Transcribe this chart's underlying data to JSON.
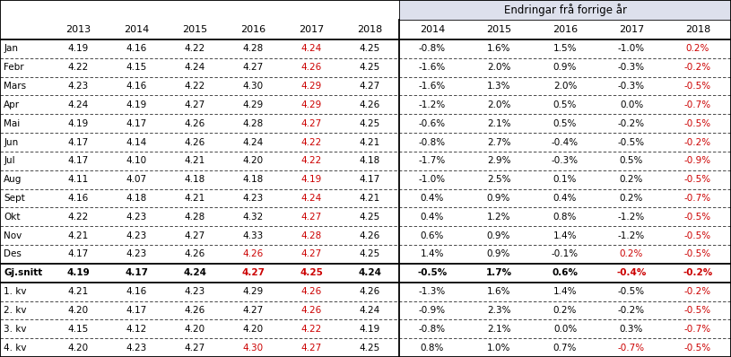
{
  "header_group": "Endringar frå forrige år",
  "left_years": [
    "2013",
    "2014",
    "2015",
    "2016",
    "2017",
    "2018"
  ],
  "right_years": [
    "2014",
    "2015",
    "2016",
    "2017",
    "2018"
  ],
  "row_labels": [
    "Jan",
    "Febr",
    "Mars",
    "Apr",
    "Mai",
    "Jun",
    "Jul",
    "Aug",
    "Sept",
    "Okt",
    "Nov",
    "Des",
    "Gj.snitt",
    "1. kv",
    "2. kv",
    "3. kv",
    "4. kv"
  ],
  "values_left": [
    [
      4.19,
      4.16,
      4.22,
      4.28,
      4.24,
      4.25
    ],
    [
      4.22,
      4.15,
      4.24,
      4.27,
      4.26,
      4.25
    ],
    [
      4.23,
      4.16,
      4.22,
      4.3,
      4.29,
      4.27
    ],
    [
      4.24,
      4.19,
      4.27,
      4.29,
      4.29,
      4.26
    ],
    [
      4.19,
      4.17,
      4.26,
      4.28,
      4.27,
      4.25
    ],
    [
      4.17,
      4.14,
      4.26,
      4.24,
      4.22,
      4.21
    ],
    [
      4.17,
      4.1,
      4.21,
      4.2,
      4.22,
      4.18
    ],
    [
      4.11,
      4.07,
      4.18,
      4.18,
      4.19,
      4.17
    ],
    [
      4.16,
      4.18,
      4.21,
      4.23,
      4.24,
      4.21
    ],
    [
      4.22,
      4.23,
      4.28,
      4.32,
      4.27,
      4.25
    ],
    [
      4.21,
      4.23,
      4.27,
      4.33,
      4.28,
      4.26
    ],
    [
      4.17,
      4.23,
      4.26,
      4.26,
      4.27,
      4.25
    ],
    [
      4.19,
      4.17,
      4.24,
      4.27,
      4.25,
      4.24
    ],
    [
      4.21,
      4.16,
      4.23,
      4.29,
      4.26,
      4.26
    ],
    [
      4.2,
      4.17,
      4.26,
      4.27,
      4.26,
      4.24
    ],
    [
      4.15,
      4.12,
      4.2,
      4.2,
      4.22,
      4.19
    ],
    [
      4.2,
      4.23,
      4.27,
      4.3,
      4.27,
      4.25
    ]
  ],
  "values_right": [
    [
      "-0.8%",
      "1.6%",
      "1.5%",
      "-1.0%",
      "0.2%"
    ],
    [
      "-1.6%",
      "2.0%",
      "0.9%",
      "-0.3%",
      "-0.2%"
    ],
    [
      "-1.6%",
      "1.3%",
      "2.0%",
      "-0.3%",
      "-0.5%"
    ],
    [
      "-1.2%",
      "2.0%",
      "0.5%",
      "0.0%",
      "-0.7%"
    ],
    [
      "-0.6%",
      "2.1%",
      "0.5%",
      "-0.2%",
      "-0.5%"
    ],
    [
      "-0.8%",
      "2.7%",
      "-0.4%",
      "-0.5%",
      "-0.2%"
    ],
    [
      "-1.7%",
      "2.9%",
      "-0.3%",
      "0.5%",
      "-0.9%"
    ],
    [
      "-1.0%",
      "2.5%",
      "0.1%",
      "0.2%",
      "-0.5%"
    ],
    [
      "0.4%",
      "0.9%",
      "0.4%",
      "0.2%",
      "-0.7%"
    ],
    [
      "0.4%",
      "1.2%",
      "0.8%",
      "-1.2%",
      "-0.5%"
    ],
    [
      "0.6%",
      "0.9%",
      "1.4%",
      "-1.2%",
      "-0.5%"
    ],
    [
      "1.4%",
      "0.9%",
      "-0.1%",
      "0.2%",
      "-0.5%"
    ],
    [
      "-0.5%",
      "1.7%",
      "0.6%",
      "-0.4%",
      "-0.2%"
    ],
    [
      "-1.3%",
      "1.6%",
      "1.4%",
      "-0.5%",
      "-0.2%"
    ],
    [
      "-0.9%",
      "2.3%",
      "0.2%",
      "-0.2%",
      "-0.5%"
    ],
    [
      "-0.8%",
      "2.1%",
      "0.0%",
      "0.3%",
      "-0.7%"
    ],
    [
      "0.8%",
      "1.0%",
      "0.7%",
      "-0.7%",
      "-0.5%"
    ]
  ],
  "red_left_per_row": {
    "0": [
      5
    ],
    "1": [
      5
    ],
    "2": [
      5
    ],
    "3": [
      5
    ],
    "4": [
      5
    ],
    "5": [
      5
    ],
    "6": [
      5
    ],
    "7": [
      5
    ],
    "8": [
      5
    ],
    "9": [
      5
    ],
    "10": [
      5
    ],
    "11": [
      4,
      5
    ],
    "12": [
      4,
      5
    ],
    "13": [
      5
    ],
    "14": [
      5
    ],
    "15": [
      5
    ],
    "16": [
      4,
      5
    ]
  },
  "red_right_per_row": {
    "0": [
      4
    ],
    "1": [
      4
    ],
    "2": [
      4
    ],
    "3": [
      4
    ],
    "4": [
      4
    ],
    "5": [
      4
    ],
    "6": [
      4
    ],
    "7": [
      4
    ],
    "8": [
      4
    ],
    "9": [
      4
    ],
    "10": [
      4
    ],
    "11": [
      3,
      4
    ],
    "12": [
      3,
      4
    ],
    "13": [
      4
    ],
    "14": [
      4
    ],
    "15": [
      4
    ],
    "16": [
      3,
      4
    ]
  },
  "bold_rows": [
    12
  ],
  "bg_header_right": "#dde0ec",
  "normal_color": "#000000",
  "red_color": "#cc0000",
  "figsize": [
    8.15,
    3.98
  ],
  "dpi": 100
}
